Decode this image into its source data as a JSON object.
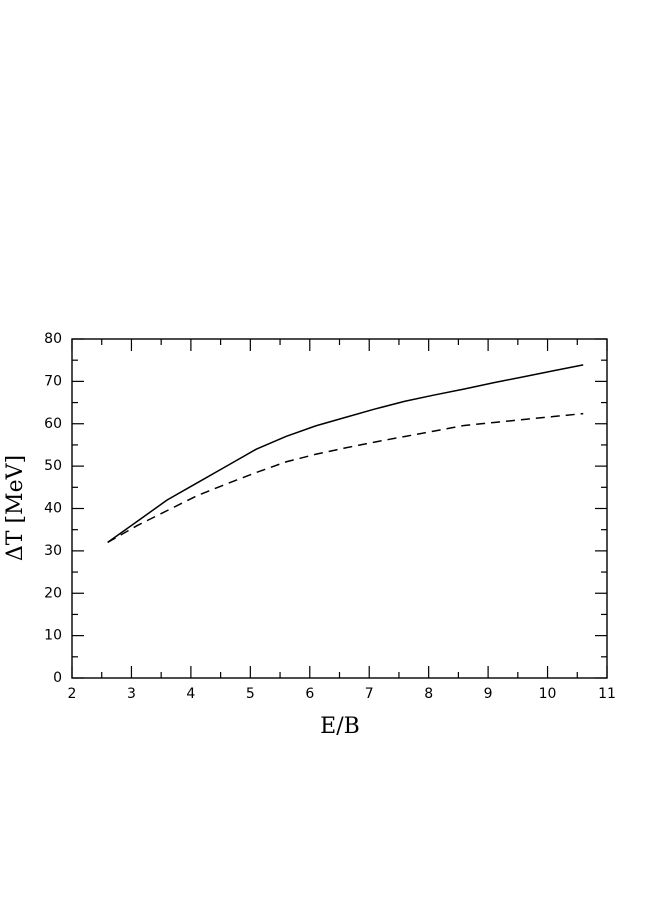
{
  "chart_data": {
    "type": "line",
    "xlabel": "E/B",
    "ylabel": "ΔT [MeV]",
    "x": [
      2.6,
      3.1,
      3.6,
      4.1,
      4.6,
      5.1,
      5.6,
      6.1,
      6.6,
      7.1,
      7.6,
      8.1,
      8.6,
      9.1,
      9.6,
      10.1,
      10.6
    ],
    "series": [
      {
        "color": "#000000",
        "dash": "solid",
        "values": [
          32,
          37,
          42,
          46,
          50,
          54,
          57,
          59.5,
          61.5,
          63.5,
          65.3,
          66.8,
          68.2,
          69.7,
          71.1,
          72.5,
          73.9
        ]
      },
      {
        "color": "#000000",
        "dash": "dashed",
        "values": [
          32,
          36,
          39.5,
          43,
          45.8,
          48.5,
          51,
          52.8,
          54.3,
          55.7,
          57,
          58.3,
          59.6,
          60.3,
          61,
          61.7,
          62.4
        ]
      }
    ],
    "xlim": [
      2,
      11
    ],
    "xticks": [
      2,
      3,
      4,
      5,
      6,
      7,
      8,
      9,
      10,
      11
    ],
    "xminorticks": [
      2.5,
      3.5,
      4.5,
      5.5,
      6.5,
      7.5,
      8.5,
      9.5,
      10.5
    ],
    "ylim": [
      0,
      80
    ],
    "yticks": [
      0,
      10,
      20,
      30,
      40,
      50,
      60,
      70,
      80
    ],
    "yminorticks": [
      5,
      15,
      25,
      35,
      45,
      55,
      65,
      75
    ],
    "grid": false
  }
}
